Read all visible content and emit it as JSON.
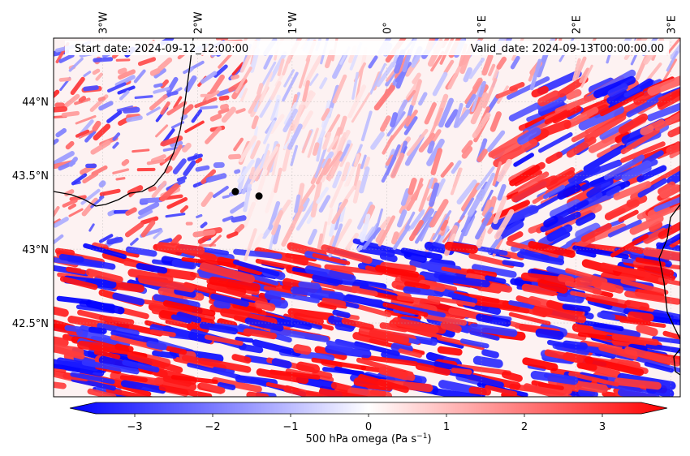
{
  "header": {
    "start_date": "Start date: 2024-09-12_12:00:00",
    "valid_date": "Valid_date: 2024-09-13T00:00:00.00"
  },
  "map": {
    "lon_range": [
      -3.52,
      3.1
    ],
    "lat_range": [
      42.0,
      44.43
    ],
    "lon_ticks": [
      {
        "value": -3,
        "label": "3°W"
      },
      {
        "value": -2,
        "label": "2°W"
      },
      {
        "value": -1,
        "label": "1°W"
      },
      {
        "value": 0,
        "label": "0°"
      },
      {
        "value": 1,
        "label": "1°E"
      },
      {
        "value": 2,
        "label": "2°E"
      },
      {
        "value": 3,
        "label": "3°E"
      }
    ],
    "lat_ticks": [
      {
        "value": 44.0,
        "label": "44°N"
      },
      {
        "value": 43.5,
        "label": "43.5°N"
      },
      {
        "value": 43.0,
        "label": "43°N"
      },
      {
        "value": 42.5,
        "label": "42.5°N"
      }
    ],
    "markers": [
      {
        "name": "point-a",
        "lon": -1.6,
        "lat": 43.39
      },
      {
        "name": "point-b",
        "lon": -1.35,
        "lat": 43.36
      }
    ],
    "colors": {
      "negative": "#0000ff",
      "neutral": "#ffffff",
      "positive": "#ff0000"
    }
  },
  "colorbar": {
    "label": "500 hPa omega (Pa s",
    "label_exp": "−1",
    "label_close": ")",
    "min": -3.5,
    "max": 3.5,
    "ticks": [
      {
        "value": -3,
        "label": "−3"
      },
      {
        "value": -2,
        "label": "−2"
      },
      {
        "value": -1,
        "label": "−1"
      },
      {
        "value": 0,
        "label": "0"
      },
      {
        "value": 1,
        "label": "1"
      },
      {
        "value": 2,
        "label": "2"
      },
      {
        "value": 3,
        "label": "3"
      }
    ]
  }
}
